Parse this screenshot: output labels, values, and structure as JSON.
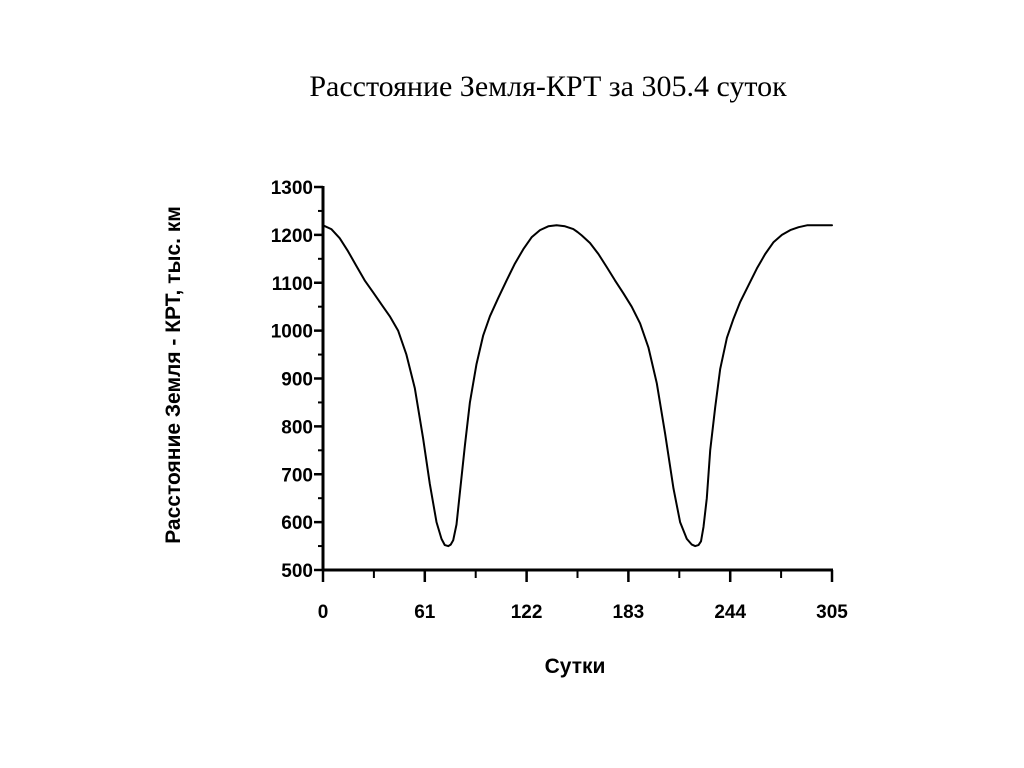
{
  "slide": {
    "title": "Расстояние Земля-КРТ за 305.4 суток"
  },
  "chart_data": {
    "type": "line",
    "title": "Расстояние Земля-КРТ за 305.4 суток",
    "xlabel": "Сутки",
    "ylabel": "Расстояние Земля - КРТ, тыс. км",
    "xlim": [
      0,
      305
    ],
    "ylim": [
      500,
      1300
    ],
    "x_ticks": [
      0,
      61,
      122,
      183,
      244,
      305
    ],
    "x_minor_ticks": [
      0,
      30.5,
      61,
      91.5,
      122,
      152.5,
      183,
      213.5,
      244,
      274.5,
      305
    ],
    "x_tick_labels": [
      "0",
      "61",
      "122",
      "183",
      "244",
      "305"
    ],
    "y_ticks": [
      500,
      600,
      700,
      800,
      900,
      1000,
      1100,
      1200,
      1300
    ],
    "y_minor_ticks": [
      550,
      650,
      750,
      850,
      950,
      1050,
      1150,
      1250
    ],
    "y_tick_labels": [
      "500",
      "600",
      "700",
      "800",
      "900",
      "1000",
      "1100",
      "1200",
      "1300"
    ],
    "grid": false,
    "legend": "none",
    "series": [
      {
        "color": "#000000",
        "x": [
          0,
          5,
          10,
          15,
          20,
          25,
          30,
          35,
          40,
          45,
          50,
          55,
          60,
          64,
          68,
          71,
          73,
          75,
          76.5,
          78,
          80,
          82,
          85,
          88,
          92,
          96,
          100,
          105,
          110,
          115,
          120,
          125,
          130,
          135,
          140,
          145,
          150,
          152.5,
          155,
          160,
          165,
          170,
          175,
          180,
          185,
          190,
          195,
          200,
          205,
          210,
          214,
          218,
          221,
          223,
          225,
          226.5,
          228,
          230,
          232,
          235,
          238,
          242,
          246,
          250,
          255,
          260,
          265,
          270,
          275,
          280,
          285,
          290,
          295,
          300,
          305
        ],
        "y": [
          1220,
          1212,
          1193,
          1166,
          1135,
          1105,
          1080,
          1055,
          1030,
          1000,
          950,
          880,
          775,
          680,
          600,
          565,
          552,
          550,
          553,
          562,
          595,
          660,
          760,
          850,
          930,
          990,
          1030,
          1068,
          1105,
          1140,
          1170,
          1195,
          1210,
          1218,
          1220,
          1218,
          1212,
          1206,
          1199,
          1183,
          1160,
          1133,
          1105,
          1078,
          1050,
          1015,
          965,
          890,
          785,
          670,
          600,
          565,
          553,
          550,
          552,
          560,
          590,
          650,
          750,
          840,
          920,
          985,
          1025,
          1060,
          1095,
          1130,
          1160,
          1185,
          1200,
          1210,
          1216,
          1220,
          1220,
          1220,
          1220
        ]
      }
    ]
  }
}
